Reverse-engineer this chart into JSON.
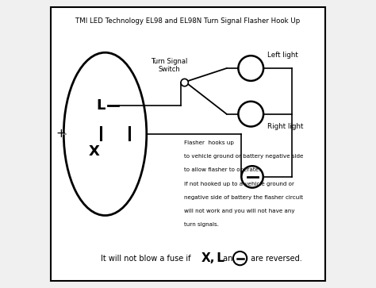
{
  "title": "TMI LED Technology EL98 and EL98N Turn Signal Flasher Hook Up",
  "bg_color": "#f0f0f0",
  "body_lines": [
    "Flasher  hooks up",
    "to vehicle ground or battery negative side",
    "to allow flasher to operate.",
    "If not hooked up to a vehicle ground or",
    "negative side of battery the flasher circuit",
    "will not work and you will not have any",
    "turn signals."
  ]
}
